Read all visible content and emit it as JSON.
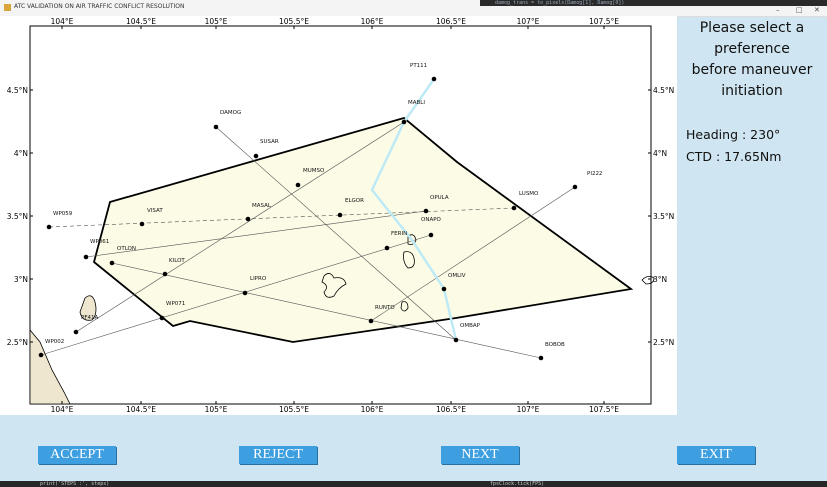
{
  "window": {
    "title": "ATC VALIDATION ON AIR TRAFFIC CONFLICT RESOLUTION",
    "background_code": "damog_trans = to_pixels(Damog[1], Damog[0])"
  },
  "map": {
    "x_tick_labels": [
      "104°E",
      "104.5°E",
      "105°E",
      "105.5°E",
      "106°E",
      "106.5°E",
      "107°E",
      "107.5°E"
    ],
    "y_tick_labels": [
      "4.5°N",
      "4°N",
      "3.5°N",
      "3°N",
      "2.5°N"
    ],
    "waypoints": [
      "PT111",
      "MABLI",
      "DAMOG",
      "SUSAR",
      "MUMSO",
      "ELGOR",
      "OPULA",
      "LUSMO",
      "PI222",
      "WP059",
      "VISAT",
      "MASAL",
      "ONAPO",
      "FERIN",
      "WP061",
      "OTLON",
      "KILOT",
      "LIPRO",
      "OMLIV",
      "WP071",
      "RUNTO",
      "OMBAP",
      "BOBOB",
      "PF41A",
      "WP002"
    ]
  },
  "panel": {
    "message": [
      "Please select a preference",
      "before maneuver initiation"
    ],
    "heading": "Heading : 230°",
    "ctd": "CTD : 17.65Nm"
  },
  "buttons": [
    "ACCEPT",
    "REJECT",
    "NEXT",
    "EXIT"
  ],
  "console": [
    "print('STEPS :', steps)",
    "fpsClock.tick(FPS)"
  ]
}
